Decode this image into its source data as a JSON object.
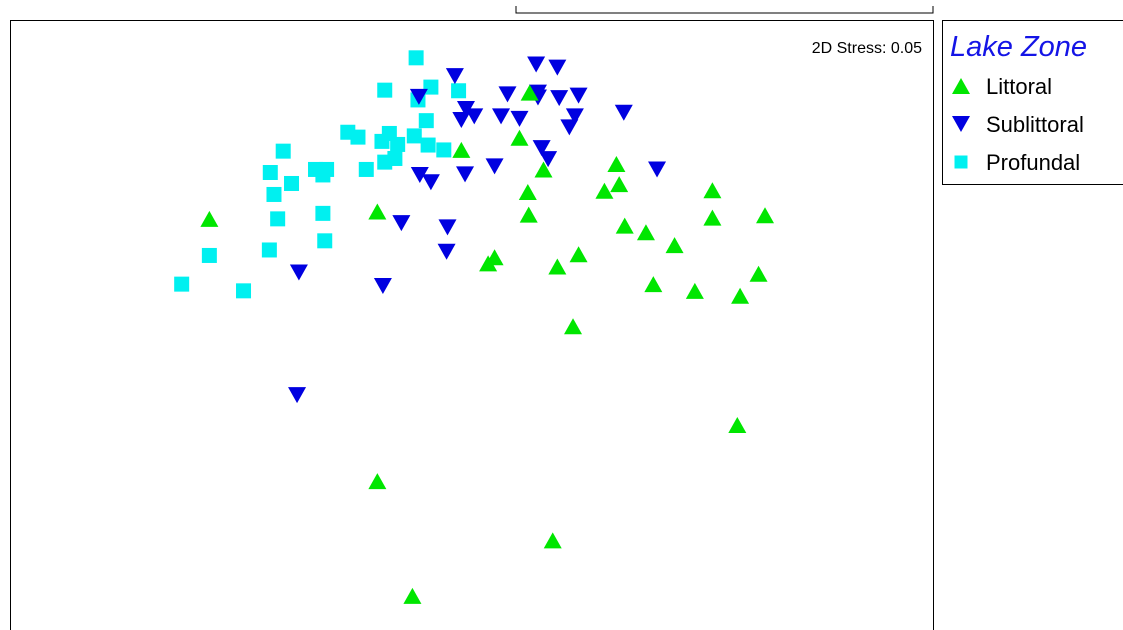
{
  "chart_data": {
    "type": "scatter",
    "title": "",
    "xlabel": "",
    "ylabel": "",
    "annotation": "2D Stress: 0.05",
    "grid": false,
    "legend_position": "right",
    "legend": {
      "title": "Lake Zone"
    },
    "xlim": [
      0,
      100
    ],
    "ylim": [
      0,
      100
    ],
    "series": [
      {
        "name": "Littoral",
        "marker": "triangle-up",
        "color": "#00e600",
        "points": [
          [
            21.6,
            67.4
          ],
          [
            39.8,
            68.6
          ],
          [
            48.9,
            78.7
          ],
          [
            56.3,
            88.1
          ],
          [
            55.2,
            80.7
          ],
          [
            57.8,
            75.5
          ],
          [
            56.1,
            71.8
          ],
          [
            56.2,
            68.1
          ],
          [
            51.8,
            60.1
          ],
          [
            52.5,
            61.1
          ],
          [
            59.3,
            59.6
          ],
          [
            61.6,
            61.6
          ],
          [
            65.7,
            76.4
          ],
          [
            66.0,
            73.1
          ],
          [
            64.4,
            72.0
          ],
          [
            66.6,
            66.3
          ],
          [
            68.9,
            65.2
          ],
          [
            76.1,
            72.1
          ],
          [
            76.1,
            67.6
          ],
          [
            81.8,
            68.0
          ],
          [
            72.0,
            63.1
          ],
          [
            69.7,
            56.7
          ],
          [
            74.2,
            55.6
          ],
          [
            79.1,
            54.8
          ],
          [
            81.1,
            58.4
          ],
          [
            61.0,
            49.8
          ],
          [
            78.8,
            33.6
          ],
          [
            39.8,
            24.4
          ],
          [
            58.8,
            14.7
          ],
          [
            43.6,
            5.6
          ]
        ]
      },
      {
        "name": "Sublittoral",
        "marker": "triangle-down",
        "color": "#0000e0",
        "points": [
          [
            57.0,
            92.7
          ],
          [
            59.3,
            92.2
          ],
          [
            48.2,
            90.8
          ],
          [
            53.9,
            87.8
          ],
          [
            57.2,
            87.3
          ],
          [
            57.2,
            88.1
          ],
          [
            59.5,
            87.2
          ],
          [
            61.6,
            87.6
          ],
          [
            44.3,
            87.4
          ],
          [
            49.4,
            85.4
          ],
          [
            50.3,
            84.2
          ],
          [
            53.2,
            84.2
          ],
          [
            55.2,
            83.8
          ],
          [
            48.9,
            83.6
          ],
          [
            61.2,
            84.2
          ],
          [
            66.5,
            84.8
          ],
          [
            60.6,
            82.4
          ],
          [
            57.6,
            79.0
          ],
          [
            58.3,
            77.2
          ],
          [
            52.5,
            76.0
          ],
          [
            49.3,
            74.7
          ],
          [
            44.4,
            74.6
          ],
          [
            45.6,
            73.4
          ],
          [
            70.1,
            75.5
          ],
          [
            42.4,
            66.7
          ],
          [
            47.4,
            66.0
          ],
          [
            47.3,
            62.0
          ],
          [
            31.3,
            58.6
          ],
          [
            40.4,
            56.4
          ],
          [
            31.1,
            38.5
          ]
        ]
      },
      {
        "name": "Profundal",
        "marker": "square",
        "color": "#00f0f0",
        "points": [
          [
            44.0,
            93.8
          ],
          [
            45.6,
            89.0
          ],
          [
            48.6,
            88.4
          ],
          [
            40.6,
            88.5
          ],
          [
            44.2,
            86.9
          ],
          [
            45.1,
            83.5
          ],
          [
            36.6,
            81.6
          ],
          [
            37.7,
            80.8
          ],
          [
            41.1,
            81.4
          ],
          [
            43.8,
            81.0
          ],
          [
            40.3,
            80.1
          ],
          [
            42.0,
            79.6
          ],
          [
            45.3,
            79.5
          ],
          [
            29.6,
            78.5
          ],
          [
            47.0,
            78.7
          ],
          [
            41.7,
            77.3
          ],
          [
            40.6,
            76.7
          ],
          [
            34.3,
            75.5
          ],
          [
            38.6,
            75.5
          ],
          [
            28.2,
            75.0
          ],
          [
            33.1,
            75.5
          ],
          [
            30.5,
            73.2
          ],
          [
            33.9,
            74.6
          ],
          [
            28.6,
            71.4
          ],
          [
            33.9,
            68.3
          ],
          [
            29.0,
            67.4
          ],
          [
            34.1,
            63.8
          ],
          [
            28.1,
            62.3
          ],
          [
            21.6,
            61.4
          ],
          [
            18.6,
            56.7
          ],
          [
            25.3,
            55.6
          ]
        ]
      }
    ]
  }
}
